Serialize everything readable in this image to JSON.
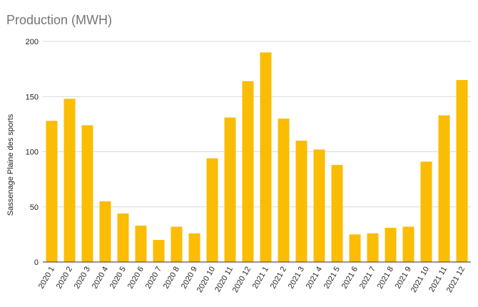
{
  "chart_data": {
    "type": "bar",
    "title": "Production (MWH)",
    "xlabel": "",
    "ylabel": "Sassenage Plaine des sports",
    "ylim": [
      0,
      200
    ],
    "yticks": [
      0,
      50,
      100,
      150,
      200
    ],
    "grid": true,
    "legend": "none",
    "bar_color": "#FBBC04",
    "categories": [
      "2020 1",
      "2020 2",
      "2020 3",
      "2020 4",
      "2020 5",
      "2020 6",
      "2020 7",
      "2020 8",
      "2020 9",
      "2020 10",
      "2020 11",
      "2020 12",
      "2021 1",
      "2021 2",
      "2021 3",
      "2021 4",
      "2021 5",
      "2021 6",
      "2021 7",
      "2021 8",
      "2021 9",
      "2021 10",
      "2021 11",
      "2021 12"
    ],
    "values": [
      128,
      148,
      124,
      55,
      44,
      33,
      20,
      32,
      26,
      94,
      131,
      164,
      190,
      130,
      110,
      102,
      88,
      25,
      26,
      31,
      32,
      91,
      133,
      165
    ]
  }
}
